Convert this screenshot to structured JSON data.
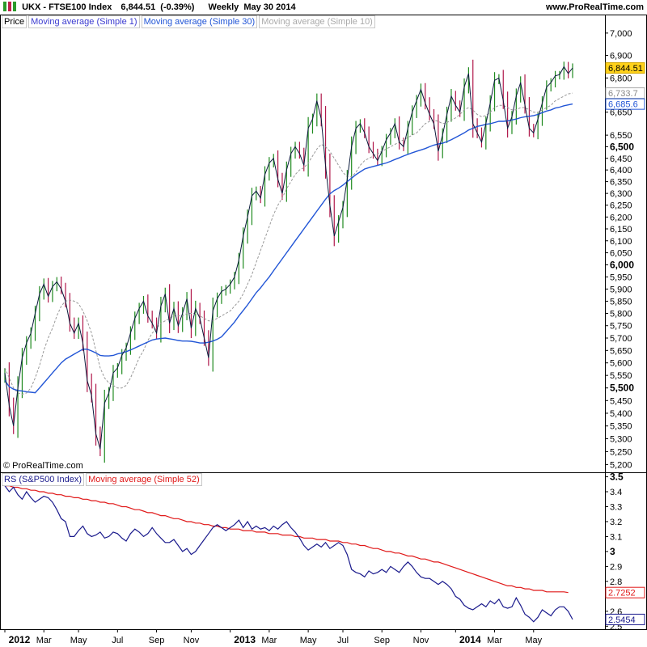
{
  "header": {
    "symbol_line": "UKX - FTSE100 Index",
    "last_price": "6,844.51",
    "change_pct": "(-0.39%)",
    "period_date": "Weekly  May 30 2014",
    "site": "www.ProRealTime.com"
  },
  "colors": {
    "up_candle": "#1f8a1f",
    "down_candle": "#b0174a",
    "price_line": "#0a1a3c",
    "ma1": "#3a3ad0",
    "ma30": "#2155d6",
    "ma10": "#999999",
    "rs": "#1a1a8c",
    "rs_ma52": "#e01818",
    "price_tag": "#ffd21a"
  },
  "copyright": "© ProRealTime.com",
  "chart_data": [
    {
      "type": "candlestick",
      "legend": [
        "Price",
        "Moving average (Simple 1)",
        "Moving average (Simple 30)",
        "Moving average (Simple 10)"
      ],
      "y_ticks": [
        5200,
        5250,
        5300,
        5350,
        5400,
        5450,
        5500,
        5550,
        5600,
        5650,
        5700,
        5750,
        5800,
        5850,
        5900,
        5950,
        6000,
        6050,
        6100,
        6150,
        6200,
        6250,
        6300,
        6350,
        6400,
        6450,
        6500,
        6550,
        6650,
        6800,
        6900,
        7000
      ],
      "y_tick_labels": [
        "5,200",
        "5,250",
        "5,300",
        "5,350",
        "5,400",
        "5,450",
        "5,500",
        "5,550",
        "5,600",
        "5,650",
        "5,700",
        "5,750",
        "5,800",
        "5,850",
        "5,900",
        "5,950",
        "6,000",
        "6,050",
        "6,100",
        "6,150",
        "6,200",
        "6,250",
        "6,300",
        "6,350",
        "6,400",
        "6,450",
        "6,500",
        "6,550",
        "6,650",
        "6,800",
        "6,900",
        "7,000"
      ],
      "bold_ticks": [
        "5,500",
        "6,000",
        "6,500"
      ],
      "ylim": [
        5170,
        7025
      ],
      "value_labels": [
        {
          "value": 6844.51,
          "label": "6,844.51"
        },
        {
          "value": 6733.7,
          "label": "6,733.7"
        },
        {
          "value": 6685.6,
          "label": "6,685.6"
        }
      ],
      "closes": [
        5560,
        5430,
        5350,
        5500,
        5620,
        5680,
        5720,
        5800,
        5880,
        5920,
        5870,
        5910,
        5930,
        5900,
        5850,
        5760,
        5720,
        5760,
        5680,
        5530,
        5470,
        5320,
        5260,
        5440,
        5480,
        5560,
        5580,
        5630,
        5660,
        5720,
        5780,
        5820,
        5850,
        5790,
        5760,
        5720,
        5830,
        5880,
        5760,
        5820,
        5750,
        5800,
        5860,
        5740,
        5820,
        5780,
        5700,
        5620,
        5810,
        5860,
        5890,
        5900,
        5920,
        5950,
        6020,
        6120,
        6200,
        6290,
        6310,
        6280,
        6380,
        6430,
        6450,
        6360,
        6300,
        6400,
        6470,
        6500,
        6470,
        6420,
        6580,
        6620,
        6700,
        6620,
        6420,
        6250,
        6120,
        6180,
        6240,
        6360,
        6500,
        6580,
        6600,
        6560,
        6500,
        6470,
        6440,
        6480,
        6530,
        6560,
        6600,
        6520,
        6500,
        6580,
        6650,
        6700,
        6750,
        6690,
        6640,
        6600,
        6480,
        6550,
        6640,
        6720,
        6680,
        6650,
        6760,
        6820,
        6600,
        6560,
        6520,
        6600,
        6690,
        6790,
        6800,
        6700,
        6580,
        6630,
        6720,
        6780,
        6680,
        6580,
        6560,
        6620,
        6690,
        6760,
        6780,
        6810,
        6815,
        6850,
        6820,
        6844.51
      ],
      "ma30": [
        5530,
        5505,
        5495,
        5490,
        5488,
        5485,
        5483,
        5481,
        5500,
        5520,
        5540,
        5560,
        5580,
        5600,
        5615,
        5625,
        5635,
        5645,
        5655,
        5655,
        5648,
        5640,
        5630,
        5628,
        5628,
        5630,
        5636,
        5640,
        5645,
        5652,
        5660,
        5668,
        5676,
        5684,
        5692,
        5696,
        5698,
        5700,
        5697,
        5694,
        5690,
        5688,
        5688,
        5687,
        5684,
        5680,
        5680,
        5683,
        5688,
        5695,
        5705,
        5725,
        5745,
        5765,
        5790,
        5812,
        5835,
        5860,
        5885,
        5905,
        5928,
        5950,
        5975,
        6000,
        6025,
        6050,
        6075,
        6100,
        6125,
        6150,
        6175,
        6200,
        6225,
        6250,
        6275,
        6298,
        6312,
        6322,
        6335,
        6350,
        6365,
        6380,
        6392,
        6404,
        6410,
        6415,
        6420,
        6425,
        6430,
        6437,
        6445,
        6452,
        6460,
        6467,
        6474,
        6480,
        6486,
        6492,
        6500,
        6507,
        6512,
        6515,
        6522,
        6530,
        6540,
        6550,
        6560,
        6572,
        6580,
        6588,
        6592,
        6597,
        6600,
        6605,
        6610,
        6610,
        6612,
        6616,
        6620,
        6626,
        6630,
        6632,
        6635,
        6640,
        6648,
        6655,
        6660,
        6668,
        6672,
        6678,
        6682,
        6685.6
      ],
      "ma10": [
        5580,
        5540,
        5500,
        5480,
        5475,
        5480,
        5500,
        5540,
        5590,
        5650,
        5700,
        5740,
        5790,
        5830,
        5850,
        5855,
        5850,
        5840,
        5810,
        5770,
        5720,
        5650,
        5580,
        5540,
        5520,
        5510,
        5500,
        5500,
        5510,
        5540,
        5580,
        5620,
        5650,
        5690,
        5720,
        5740,
        5760,
        5770,
        5780,
        5790,
        5790,
        5790,
        5800,
        5800,
        5800,
        5790,
        5780,
        5770,
        5770,
        5780,
        5790,
        5800,
        5810,
        5830,
        5850,
        5880,
        5920,
        5960,
        6010,
        6060,
        6110,
        6160,
        6210,
        6250,
        6280,
        6320,
        6350,
        6380,
        6400,
        6410,
        6430,
        6460,
        6490,
        6510,
        6500,
        6480,
        6450,
        6420,
        6390,
        6370,
        6370,
        6390,
        6420,
        6440,
        6450,
        6460,
        6470,
        6480,
        6490,
        6500,
        6510,
        6520,
        6530,
        6540,
        6550,
        6560,
        6580,
        6600,
        6610,
        6615,
        6610,
        6600,
        6605,
        6615,
        6625,
        6640,
        6660,
        6670,
        6660,
        6640,
        6630,
        6635,
        6650,
        6670,
        6680,
        6680,
        6670,
        6660,
        6660,
        6670,
        6670,
        6660,
        6650,
        6650,
        6660,
        6670,
        6680,
        6700,
        6710,
        6720,
        6730,
        6733.7
      ]
    },
    {
      "type": "line",
      "legend": [
        "RS (S&P500 Index)",
        "Moving average (Simple 52)"
      ],
      "y_ticks": [
        2.5,
        2.6,
        2.8,
        2.9,
        3.0,
        3.1,
        3.2,
        3.3,
        3.4,
        3.5
      ],
      "y_tick_labels": [
        "2.5",
        "2.6",
        "2.8",
        "2.9",
        "3",
        "3.1",
        "3.2",
        "3.3",
        "3.4",
        "3.5"
      ],
      "bold_ticks": [
        "3",
        "3.5"
      ],
      "ylim": [
        2.48,
        3.53
      ],
      "value_labels": [
        {
          "value": 2.7252,
          "label": "2.7252"
        },
        {
          "value": 2.5454,
          "label": "2.5454"
        }
      ],
      "rs": [
        3.44,
        3.4,
        3.43,
        3.38,
        3.35,
        3.4,
        3.36,
        3.33,
        3.35,
        3.37,
        3.36,
        3.33,
        3.28,
        3.22,
        3.2,
        3.1,
        3.1,
        3.14,
        3.17,
        3.12,
        3.1,
        3.11,
        3.13,
        3.09,
        3.1,
        3.13,
        3.12,
        3.09,
        3.07,
        3.12,
        3.15,
        3.13,
        3.1,
        3.12,
        3.16,
        3.12,
        3.09,
        3.06,
        3.06,
        3.08,
        3.04,
        3.0,
        3.02,
        2.98,
        3.0,
        3.04,
        3.08,
        3.12,
        3.16,
        3.18,
        3.16,
        3.14,
        3.16,
        3.18,
        3.21,
        3.16,
        3.2,
        3.15,
        3.17,
        3.15,
        3.16,
        3.14,
        3.17,
        3.15,
        3.18,
        3.2,
        3.16,
        3.13,
        3.09,
        3.04,
        3.01,
        3.03,
        3.05,
        3.03,
        3.06,
        3.02,
        3.04,
        3.06,
        3.04,
        2.98,
        2.88,
        2.86,
        2.85,
        2.83,
        2.87,
        2.85,
        2.86,
        2.88,
        2.86,
        2.9,
        2.88,
        2.86,
        2.9,
        2.93,
        2.9,
        2.86,
        2.83,
        2.82,
        2.82,
        2.8,
        2.78,
        2.8,
        2.78,
        2.75,
        2.7,
        2.68,
        2.64,
        2.62,
        2.61,
        2.63,
        2.65,
        2.63,
        2.67,
        2.65,
        2.68,
        2.63,
        2.62,
        2.63,
        2.69,
        2.64,
        2.58,
        2.56,
        2.53,
        2.56,
        2.61,
        2.59,
        2.57,
        2.61,
        2.63,
        2.63,
        2.6,
        2.5454
      ],
      "ma52": [
        3.44,
        3.44,
        3.43,
        3.43,
        3.42,
        3.42,
        3.41,
        3.41,
        3.4,
        3.4,
        3.39,
        3.39,
        3.38,
        3.38,
        3.37,
        3.37,
        3.36,
        3.36,
        3.35,
        3.35,
        3.34,
        3.34,
        3.33,
        3.33,
        3.32,
        3.32,
        3.31,
        3.3,
        3.3,
        3.29,
        3.28,
        3.28,
        3.27,
        3.26,
        3.26,
        3.25,
        3.24,
        3.24,
        3.23,
        3.22,
        3.22,
        3.21,
        3.2,
        3.2,
        3.19,
        3.19,
        3.18,
        3.18,
        3.17,
        3.17,
        3.16,
        3.16,
        3.15,
        3.15,
        3.15,
        3.14,
        3.14,
        3.14,
        3.13,
        3.13,
        3.13,
        3.12,
        3.12,
        3.12,
        3.11,
        3.11,
        3.11,
        3.1,
        3.1,
        3.09,
        3.09,
        3.09,
        3.08,
        3.08,
        3.08,
        3.07,
        3.07,
        3.07,
        3.06,
        3.06,
        3.05,
        3.05,
        3.04,
        3.04,
        3.03,
        3.02,
        3.02,
        3.01,
        3.0,
        3.0,
        2.99,
        2.99,
        2.98,
        2.97,
        2.97,
        2.96,
        2.95,
        2.95,
        2.94,
        2.93,
        2.93,
        2.92,
        2.91,
        2.9,
        2.89,
        2.88,
        2.87,
        2.86,
        2.85,
        2.84,
        2.83,
        2.82,
        2.81,
        2.8,
        2.79,
        2.78,
        2.77,
        2.77,
        2.76,
        2.76,
        2.75,
        2.75,
        2.74,
        2.74,
        2.74,
        2.73,
        2.73,
        2.73,
        2.73,
        2.73,
        2.7252
      ]
    }
  ],
  "x_axis": {
    "labels": [
      {
        "label": "2012",
        "week": 0,
        "bold": true
      },
      {
        "label": "Mar",
        "week": 9,
        "bold": false
      },
      {
        "label": "May",
        "week": 17,
        "bold": false
      },
      {
        "label": "Jul",
        "week": 26,
        "bold": false
      },
      {
        "label": "Sep",
        "week": 35,
        "bold": false
      },
      {
        "label": "Nov",
        "week": 43,
        "bold": false
      },
      {
        "label": "2013",
        "week": 52,
        "bold": true
      },
      {
        "label": "Mar",
        "week": 61,
        "bold": false
      },
      {
        "label": "May",
        "week": 70,
        "bold": false
      },
      {
        "label": "Jul",
        "week": 78,
        "bold": false
      },
      {
        "label": "Sep",
        "week": 87,
        "bold": false
      },
      {
        "label": "Nov",
        "week": 96,
        "bold": false
      },
      {
        "label": "2014",
        "week": 104,
        "bold": true
      },
      {
        "label": "Mar",
        "week": 113,
        "bold": false
      },
      {
        "label": "May",
        "week": 122,
        "bold": false
      }
    ]
  }
}
